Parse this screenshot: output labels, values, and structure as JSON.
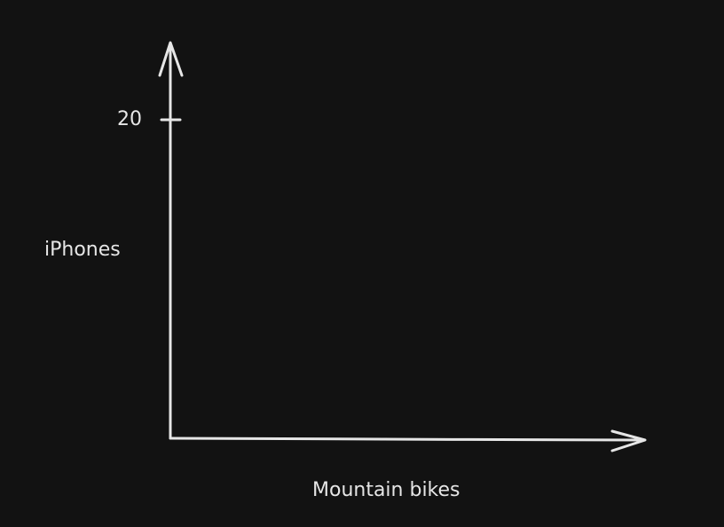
{
  "diagram": {
    "y_axis": {
      "label": "iPhones",
      "tick_label": "20"
    },
    "x_axis": {
      "label": "Mountain bikes"
    },
    "colors": {
      "background": "#121212",
      "stroke": "#e6e6e6"
    }
  }
}
